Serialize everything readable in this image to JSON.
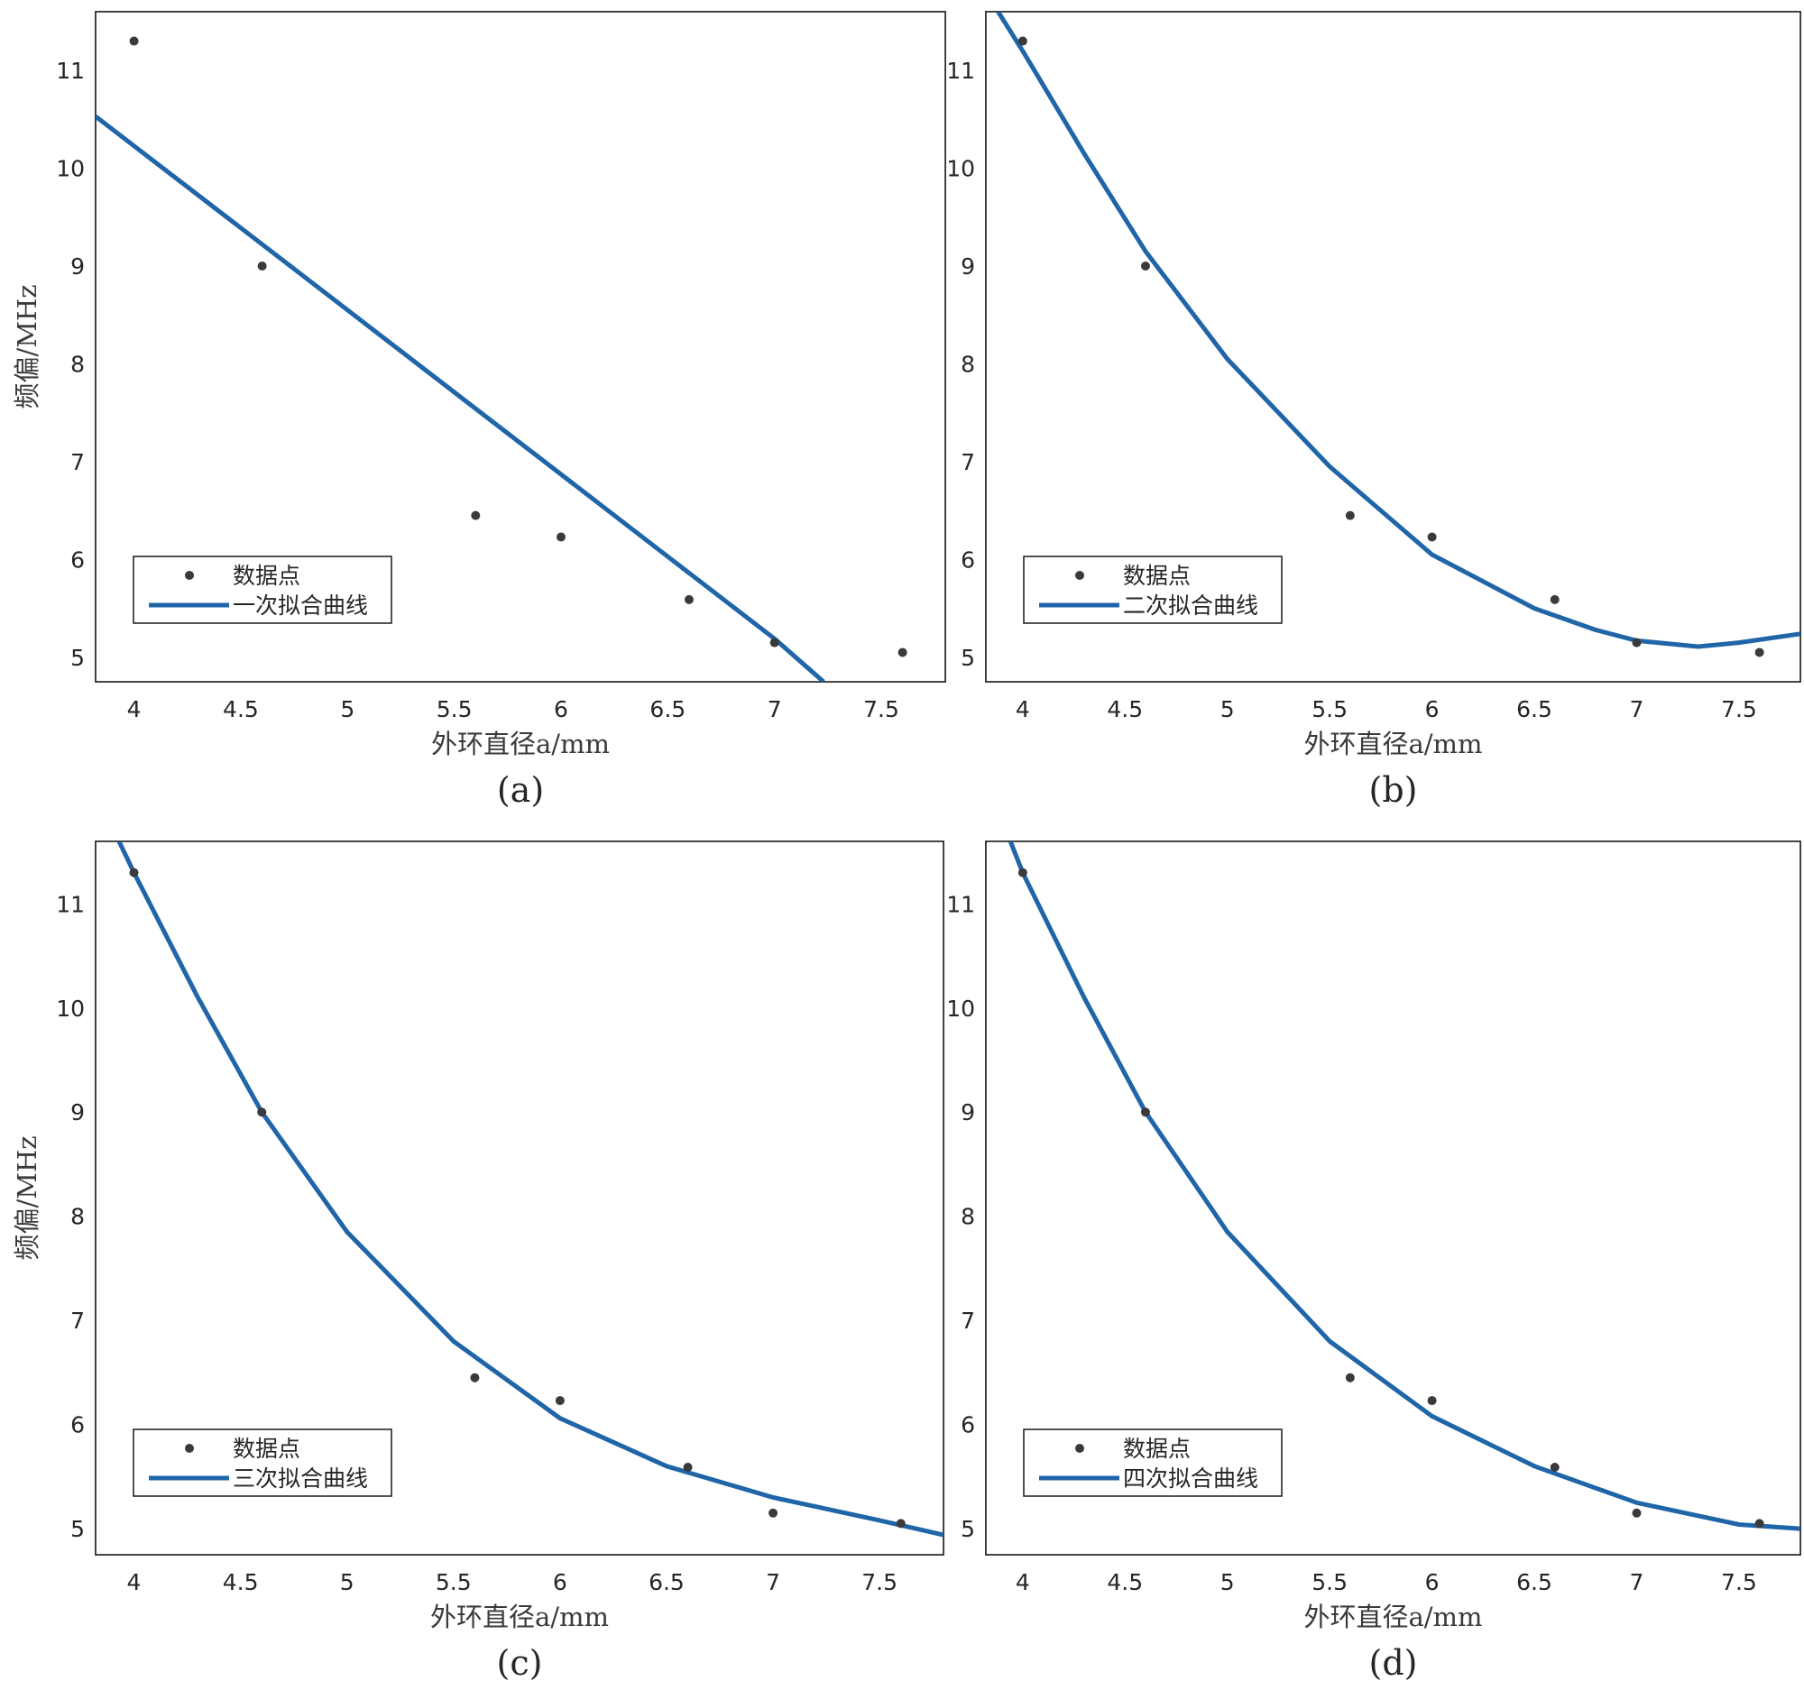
{
  "figure": {
    "colors": {
      "fit": "#1f65a8",
      "points": "#3a3a3a",
      "grid": "#dcdcdc",
      "frame": "#262626"
    }
  },
  "chart_data": [
    {
      "id": "a",
      "type": "scatter",
      "panel_label": "(a)",
      "xlabel": "外环直径a/mm",
      "ylabel": "频偏/MHz",
      "xlim": [
        3.82,
        7.8
      ],
      "ylim": [
        4.75,
        11.6
      ],
      "xticks": [
        4,
        4.5,
        5,
        5.5,
        6,
        6.5,
        7,
        7.5
      ],
      "yticks": [
        5,
        6,
        7,
        8,
        9,
        10,
        11
      ],
      "grid": true,
      "legend_position": "bottom-left",
      "series": [
        {
          "name": "数据点",
          "kind": "points",
          "x": [
            4,
            4.6,
            5.6,
            6,
            6.6,
            7,
            7.6
          ],
          "y": [
            11.3,
            9.0,
            6.45,
            6.23,
            5.59,
            5.15,
            5.05
          ]
        },
        {
          "name": "一次拟合曲线",
          "kind": "fit",
          "x": [
            3.82,
            4.5,
            5,
            5.5,
            6,
            6.5,
            7,
            7.23
          ],
          "y": [
            10.53,
            9.39,
            8.55,
            7.71,
            6.87,
            6.03,
            5.19,
            4.75
          ]
        }
      ]
    },
    {
      "id": "b",
      "type": "scatter",
      "panel_label": "(b)",
      "xlabel": "外环直径a/mm",
      "ylabel": "",
      "xlim": [
        3.82,
        7.8
      ],
      "ylim": [
        4.75,
        11.6
      ],
      "xticks": [
        4,
        4.5,
        5,
        5.5,
        6,
        6.5,
        7,
        7.5
      ],
      "yticks": [
        5,
        6,
        7,
        8,
        9,
        10,
        11
      ],
      "grid": true,
      "legend_position": "bottom-left",
      "series": [
        {
          "name": "数据点",
          "kind": "points",
          "x": [
            4,
            4.6,
            5.6,
            6,
            6.6,
            7,
            7.6
          ],
          "y": [
            11.3,
            9.0,
            6.45,
            6.23,
            5.59,
            5.15,
            5.05
          ]
        },
        {
          "name": "二次拟合曲线",
          "kind": "fit",
          "x": [
            3.88,
            4,
            4.3,
            4.6,
            5,
            5.5,
            6,
            6.5,
            6.8,
            7,
            7.3,
            7.5,
            7.8
          ],
          "y": [
            11.6,
            11.2,
            10.15,
            9.15,
            8.05,
            6.95,
            6.05,
            5.5,
            5.28,
            5.17,
            5.11,
            5.15,
            5.24
          ]
        }
      ]
    },
    {
      "id": "c",
      "type": "scatter",
      "panel_label": "(c)",
      "xlabel": "外环直径a/mm",
      "ylabel": "频偏/MHz",
      "xlim": [
        3.82,
        7.8
      ],
      "ylim": [
        4.75,
        11.6
      ],
      "xticks": [
        4,
        4.5,
        5,
        5.5,
        6,
        6.5,
        7,
        7.5
      ],
      "yticks": [
        5,
        6,
        7,
        8,
        9,
        10,
        11
      ],
      "grid": true,
      "legend_position": "bottom-left",
      "series": [
        {
          "name": "数据点",
          "kind": "points",
          "x": [
            4,
            4.6,
            5.6,
            6,
            6.6,
            7,
            7.6
          ],
          "y": [
            11.3,
            9.0,
            6.45,
            6.23,
            5.59,
            5.15,
            5.05
          ]
        },
        {
          "name": "三次拟合曲线",
          "kind": "fit",
          "x": [
            3.93,
            4,
            4.3,
            4.6,
            5,
            5.5,
            6,
            6.5,
            7,
            7.5,
            7.8
          ],
          "y": [
            11.6,
            11.3,
            10.1,
            9.0,
            7.85,
            6.8,
            6.06,
            5.6,
            5.3,
            5.08,
            4.94
          ]
        }
      ]
    },
    {
      "id": "d",
      "type": "scatter",
      "panel_label": "(d)",
      "xlabel": "外环直径a/mm",
      "ylabel": "",
      "xlim": [
        3.82,
        7.8
      ],
      "ylim": [
        4.75,
        11.6
      ],
      "xticks": [
        4,
        4.5,
        5,
        5.5,
        6,
        6.5,
        7,
        7.5
      ],
      "yticks": [
        5,
        6,
        7,
        8,
        9,
        10,
        11
      ],
      "grid": true,
      "legend_position": "bottom-left",
      "series": [
        {
          "name": "数据点",
          "kind": "points",
          "x": [
            4,
            4.6,
            5.6,
            6,
            6.6,
            7,
            7.6
          ],
          "y": [
            11.3,
            9.0,
            6.45,
            6.23,
            5.59,
            5.15,
            5.05
          ]
        },
        {
          "name": "四次拟合曲线",
          "kind": "fit",
          "x": [
            3.94,
            4,
            4.3,
            4.6,
            5,
            5.5,
            6,
            6.5,
            7,
            7.5,
            7.8
          ],
          "y": [
            11.6,
            11.3,
            10.1,
            9.0,
            7.85,
            6.8,
            6.08,
            5.6,
            5.25,
            5.04,
            5.0
          ]
        }
      ]
    }
  ]
}
